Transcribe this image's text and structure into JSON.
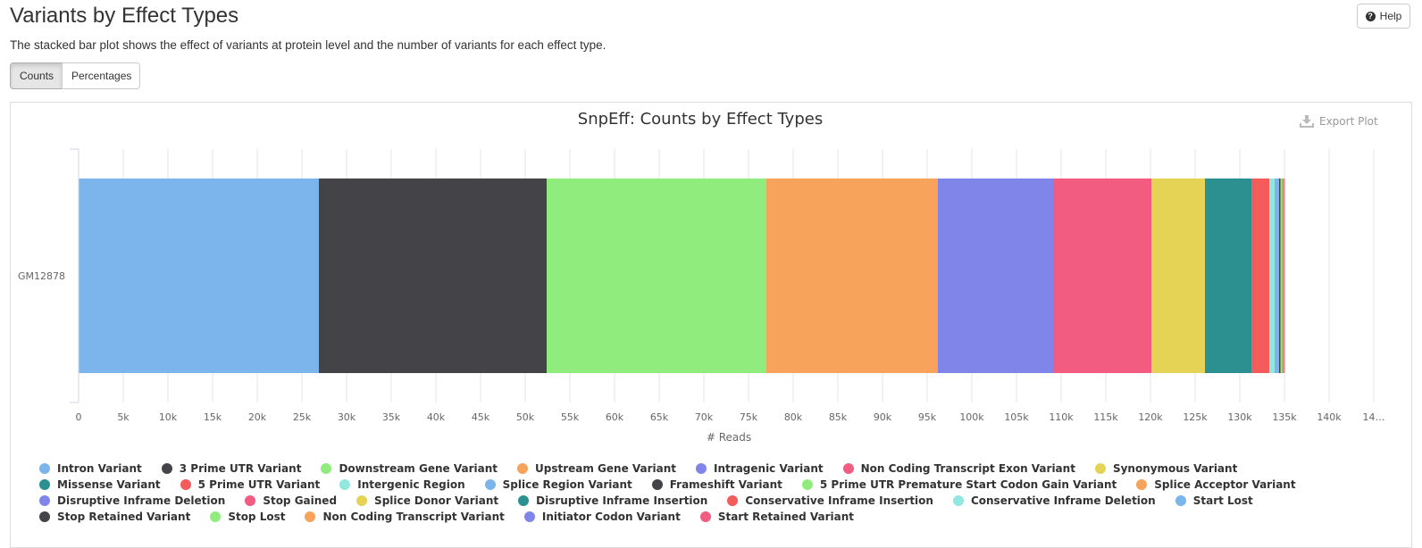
{
  "header": {
    "title": "Variants by Effect Types",
    "description": "The stacked bar plot shows the effect of variants at protein level and the number of variants for each effect type.",
    "help_label": "Help"
  },
  "toggle": {
    "counts_label": "Counts",
    "percentages_label": "Percentages",
    "active": "Counts"
  },
  "export_label": "Export Plot",
  "chart_data": {
    "type": "bar",
    "orientation": "horizontal",
    "stacked": true,
    "title": "SnpEff: Counts by Effect Types",
    "xlabel": "# Reads",
    "ylabel": "",
    "xlim": [
      0,
      143000
    ],
    "x_ticks": [
      "0",
      "5k",
      "10k",
      "15k",
      "20k",
      "25k",
      "30k",
      "35k",
      "40k",
      "45k",
      "50k",
      "55k",
      "60k",
      "65k",
      "70k",
      "75k",
      "80k",
      "85k",
      "90k",
      "95k",
      "100k",
      "105k",
      "110k",
      "115k",
      "120k",
      "125k",
      "130k",
      "135k",
      "140k",
      "14…"
    ],
    "categories": [
      "GM12878"
    ],
    "grid": true,
    "legend_position": "bottom",
    "series": [
      {
        "name": "Intron Variant",
        "color": "#7cb5ec",
        "values": [
          26900
        ]
      },
      {
        "name": "3 Prime UTR Variant",
        "color": "#434348",
        "values": [
          25500
        ]
      },
      {
        "name": "Downstream Gene Variant",
        "color": "#90ed7d",
        "values": [
          24600
        ]
      },
      {
        "name": "Upstream Gene Variant",
        "color": "#f7a35c",
        "values": [
          19200
        ]
      },
      {
        "name": "Intragenic Variant",
        "color": "#8085e9",
        "values": [
          12900
        ]
      },
      {
        "name": "Non Coding Transcript Exon Variant",
        "color": "#f15c80",
        "values": [
          11000
        ]
      },
      {
        "name": "Synonymous Variant",
        "color": "#e4d354",
        "values": [
          6000
        ]
      },
      {
        "name": "Missense Variant",
        "color": "#2b908f",
        "values": [
          5200
        ]
      },
      {
        "name": "5 Prime UTR Variant",
        "color": "#f45b5b",
        "values": [
          2000
        ]
      },
      {
        "name": "Intergenic Region",
        "color": "#91e8e1",
        "values": [
          600
        ]
      },
      {
        "name": "Splice Region Variant",
        "color": "#7cb5ec",
        "values": [
          500
        ]
      },
      {
        "name": "Frameshift Variant",
        "color": "#434348",
        "values": [
          150
        ]
      },
      {
        "name": "5 Prime UTR Premature Start Codon Gain Variant",
        "color": "#90ed7d",
        "values": [
          150
        ]
      },
      {
        "name": "Splice Acceptor Variant",
        "color": "#f7a35c",
        "values": [
          60
        ]
      },
      {
        "name": "Disruptive Inframe Deletion",
        "color": "#8085e9",
        "values": [
          40
        ]
      },
      {
        "name": "Stop Gained",
        "color": "#f15c80",
        "values": [
          40
        ]
      },
      {
        "name": "Splice Donor Variant",
        "color": "#e4d354",
        "values": [
          40
        ]
      },
      {
        "name": "Disruptive Inframe Insertion",
        "color": "#2b908f",
        "values": [
          20
        ]
      },
      {
        "name": "Conservative Inframe Insertion",
        "color": "#f45b5b",
        "values": [
          20
        ]
      },
      {
        "name": "Conservative Inframe Deletion",
        "color": "#91e8e1",
        "values": [
          20
        ]
      },
      {
        "name": "Start Lost",
        "color": "#7cb5ec",
        "values": [
          10
        ]
      },
      {
        "name": "Stop Retained Variant",
        "color": "#434348",
        "values": [
          10
        ]
      },
      {
        "name": "Stop Lost",
        "color": "#90ed7d",
        "values": [
          10
        ]
      },
      {
        "name": "Non Coding Transcript Variant",
        "color": "#f7a35c",
        "values": [
          10
        ]
      },
      {
        "name": "Initiator Codon Variant",
        "color": "#8085e9",
        "values": [
          5
        ]
      },
      {
        "name": "Start Retained Variant",
        "color": "#f15c80",
        "values": [
          5
        ]
      }
    ]
  }
}
